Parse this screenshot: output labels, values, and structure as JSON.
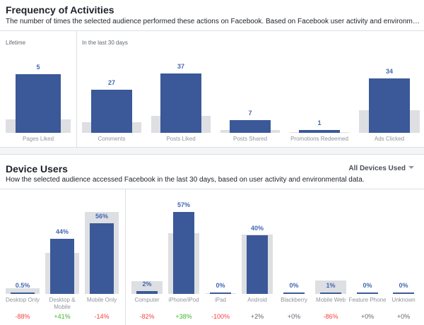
{
  "frequency": {
    "title": "Frequency of Activities",
    "description": "The number of times the selected audience performed these actions on Facebook. Based on Facebook user activity and environmenta...",
    "lifetime_label": "Lifetime",
    "last30_label": "In the last 30 days",
    "items": [
      {
        "label": "Pages Liked",
        "value": "5",
        "bar": 0.7,
        "bench": 0.16
      },
      {
        "label": "Comments",
        "value": "27",
        "bar": 0.52,
        "bench": 0.13
      },
      {
        "label": "Posts Liked",
        "value": "37",
        "bar": 0.71,
        "bench": 0.2
      },
      {
        "label": "Posts Shared",
        "value": "7",
        "bar": 0.15,
        "bench": 0.03
      },
      {
        "label": "Promotions Redeemed",
        "value": "1",
        "bar": 0.03,
        "bench": 0.01
      },
      {
        "label": "Ads Clicked",
        "value": "34",
        "bar": 0.65,
        "bench": 0.27
      }
    ]
  },
  "devices": {
    "title": "Device Users",
    "description": "How the selected audience accessed Facebook in the last 30 days, based on user activity and environmental data.",
    "dropdown_label": "All Devices Used",
    "items": [
      {
        "label": "Desktop Only",
        "value": "0.5%",
        "bar": 0.01,
        "bench": 0.07,
        "delta": "-88%",
        "sign": "neg"
      },
      {
        "label": "Desktop & Mobile",
        "value": "44%",
        "bar": 0.65,
        "bench": 0.48,
        "delta": "+41%",
        "sign": "pos"
      },
      {
        "label": "Mobile Only",
        "value": "56%",
        "bar": 0.83,
        "bench": 0.97,
        "delta": "-14%",
        "sign": "neg"
      },
      {
        "label": "Computer",
        "value": "2%",
        "bar": 0.03,
        "bench": 0.15,
        "delta": "-82%",
        "sign": "neg"
      },
      {
        "label": "iPhone/iPod",
        "value": "57%",
        "bar": 0.97,
        "bench": 0.72,
        "delta": "+38%",
        "sign": "pos"
      },
      {
        "label": "iPad",
        "value": "0%",
        "bar": 0.0,
        "bench": 0.01,
        "delta": "-100%",
        "sign": "neg"
      },
      {
        "label": "Android",
        "value": "40%",
        "bar": 0.69,
        "bench": 0.7,
        "delta": "+2%",
        "sign": "zero"
      },
      {
        "label": "Blackberry",
        "value": "0%",
        "bar": 0.0,
        "bench": 0.0,
        "delta": "+0%",
        "sign": "zero"
      },
      {
        "label": "Mobile Web",
        "value": "1%",
        "bar": 0.02,
        "bench": 0.16,
        "delta": "-86%",
        "sign": "neg"
      },
      {
        "label": "Feature Phone",
        "value": "0%",
        "bar": 0.0,
        "bench": 0.0,
        "delta": "+0%",
        "sign": "zero"
      },
      {
        "label": "Unknown",
        "value": "0%",
        "bar": 0.0,
        "bench": 0.0,
        "delta": "+0%",
        "sign": "zero"
      }
    ]
  },
  "colors": {
    "bar": "#3b5998",
    "benchmark": "#dddfe2",
    "value_text": "#4267b2",
    "negative": "#fa3e3e",
    "positive": "#42b72a"
  }
}
